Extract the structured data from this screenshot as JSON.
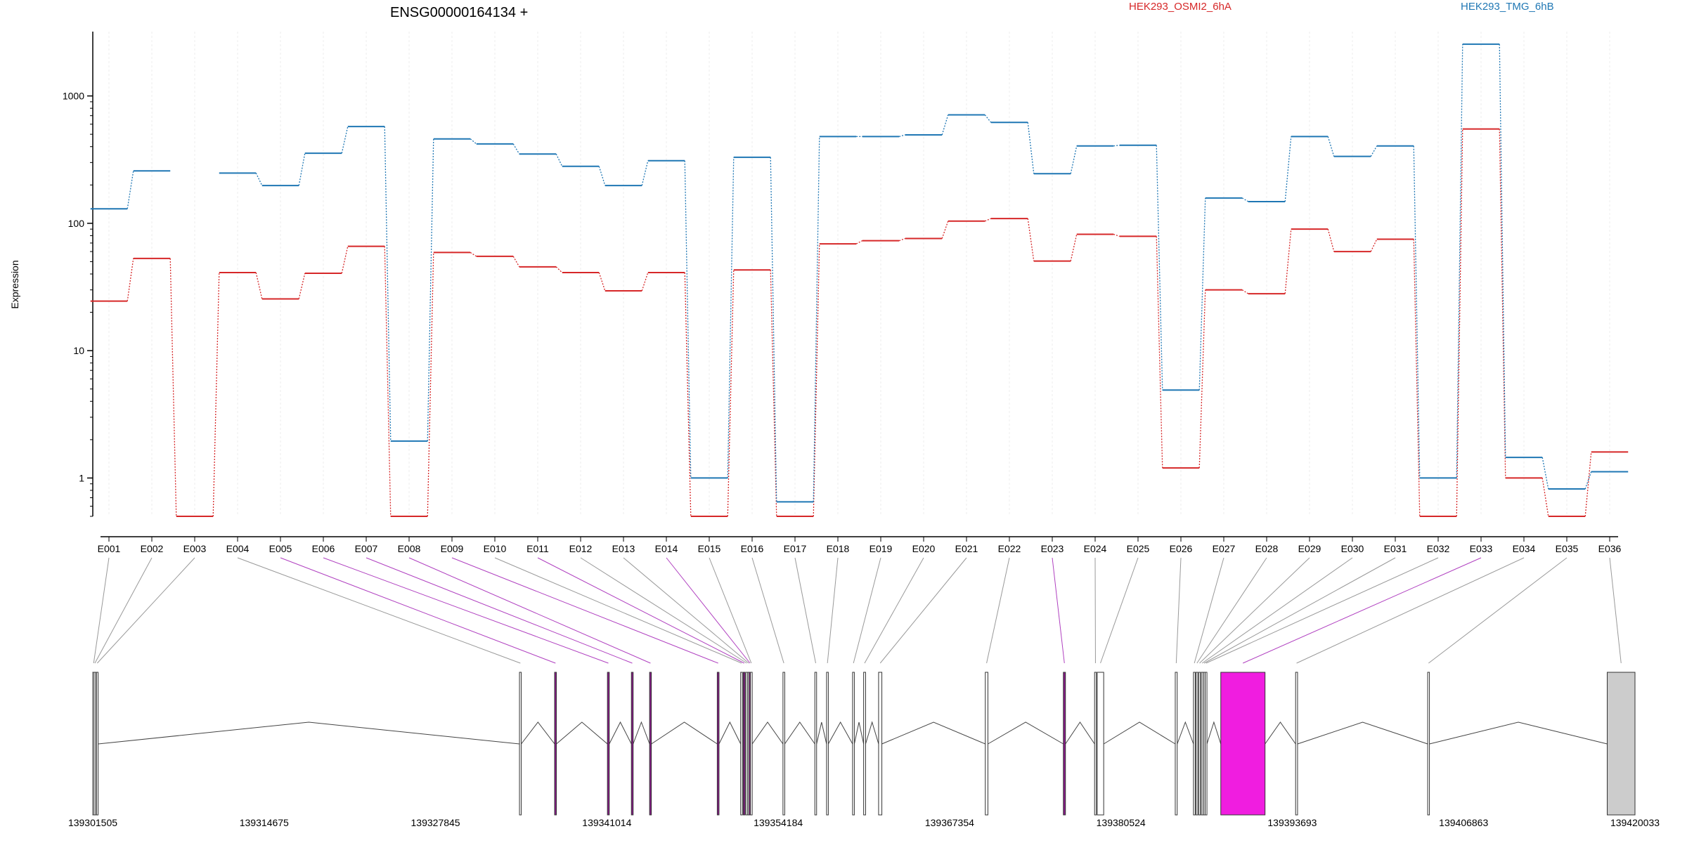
{
  "chart_data": {
    "type": "line",
    "title": "ENSG00000164134 +",
    "ylabel": "Expression",
    "yscale": "log",
    "ylim": [
      0.5,
      3200
    ],
    "yticks": [
      {
        "value": 1,
        "label": "1"
      },
      {
        "value": 10,
        "label": "10"
      },
      {
        "value": 100,
        "label": "100"
      },
      {
        "value": 1000,
        "label": "1000"
      }
    ],
    "categories": [
      "E001",
      "E002",
      "E003",
      "E004",
      "E005",
      "E006",
      "E007",
      "E008",
      "E009",
      "E010",
      "E011",
      "E012",
      "E013",
      "E014",
      "E015",
      "E016",
      "E017",
      "E018",
      "E019",
      "E020",
      "E021",
      "E022",
      "E023",
      "E024",
      "E025",
      "E026",
      "E027",
      "E028",
      "E029",
      "E030",
      "E031",
      "E032",
      "E033",
      "E034",
      "E035",
      "E036"
    ],
    "series": [
      {
        "name": "HEK293_OSMI2_6hA",
        "color": "#d62728",
        "values": [
          24.5,
          53,
          0.5,
          41,
          25.5,
          40.5,
          66,
          0.5,
          59,
          55,
          45.5,
          41,
          29.5,
          41,
          0.5,
          43,
          0.5,
          69,
          73,
          76,
          104,
          109,
          50.5,
          82,
          79,
          1.2,
          30,
          28,
          90,
          60,
          75,
          0.5,
          550,
          1.0,
          0.5,
          1.6
        ]
      },
      {
        "name": "HEK293_TMG_6hB",
        "color": "#1f77b4",
        "values": [
          130,
          258,
          null,
          248,
          198,
          355,
          575,
          1.95,
          460,
          420,
          350,
          280,
          198,
          310,
          1.0,
          330,
          0.65,
          480,
          480,
          495,
          710,
          620,
          245,
          405,
          410,
          4.9,
          158,
          148,
          480,
          335,
          405,
          1.0,
          2550,
          1.45,
          0.82,
          1.12
        ]
      }
    ],
    "gene_model": {
      "coord_ticks": [
        "139301505",
        "139314675",
        "139327845",
        "139341014",
        "139354184",
        "139367354",
        "139380524",
        "139393693",
        "139406863",
        "139420033"
      ],
      "coord_range": [
        139301505,
        139420033
      ],
      "exons": [
        {
          "id": "E001",
          "start": 139301505,
          "end": 139301560,
          "highlight": false
        },
        {
          "id": "E002",
          "start": 139301600,
          "end": 139301700,
          "highlight": false
        },
        {
          "id": "E003",
          "start": 139301780,
          "end": 139301900,
          "highlight": false
        },
        {
          "id": "E004",
          "start": 139334300,
          "end": 139334420,
          "highlight": false
        },
        {
          "id": "E005",
          "start": 139337000,
          "end": 139337120,
          "highlight": true
        },
        {
          "id": "E006",
          "start": 139341060,
          "end": 139341200,
          "highlight": true
        },
        {
          "id": "E007",
          "start": 139342900,
          "end": 139343020,
          "highlight": true
        },
        {
          "id": "E008",
          "start": 139344300,
          "end": 139344420,
          "highlight": true
        },
        {
          "id": "E009",
          "start": 139349500,
          "end": 139349620,
          "highlight": true
        },
        {
          "id": "E010",
          "start": 139351300,
          "end": 139351360,
          "highlight": false
        },
        {
          "id": "E011",
          "start": 139351500,
          "end": 139351580,
          "highlight": true
        },
        {
          "id": "E012",
          "start": 139351700,
          "end": 139351760,
          "highlight": false
        },
        {
          "id": "E013",
          "start": 139351850,
          "end": 139351900,
          "highlight": false
        },
        {
          "id": "E014",
          "start": 139351950,
          "end": 139352000,
          "highlight": true
        },
        {
          "id": "E015",
          "start": 139352050,
          "end": 139352100,
          "highlight": false
        },
        {
          "id": "E016",
          "start": 139354550,
          "end": 139354650,
          "highlight": false
        },
        {
          "id": "E017",
          "start": 139357000,
          "end": 139357120,
          "highlight": false
        },
        {
          "id": "E018",
          "start": 139357900,
          "end": 139358000,
          "highlight": false
        },
        {
          "id": "E019",
          "start": 139359900,
          "end": 139360000,
          "highlight": false
        },
        {
          "id": "E020",
          "start": 139360750,
          "end": 139360900,
          "highlight": false
        },
        {
          "id": "E021",
          "start": 139361900,
          "end": 139362150,
          "highlight": false
        },
        {
          "id": "E022",
          "start": 139370100,
          "end": 139370300,
          "highlight": false
        },
        {
          "id": "E023",
          "start": 139376100,
          "end": 139376260,
          "highlight": true
        },
        {
          "id": "E024",
          "start": 139378500,
          "end": 139378620,
          "highlight": false
        },
        {
          "id": "E025",
          "start": 139378700,
          "end": 139379200,
          "highlight": false
        },
        {
          "id": "E026",
          "start": 139384700,
          "end": 139384850,
          "highlight": false
        },
        {
          "id": "E027",
          "start": 139386100,
          "end": 139386200,
          "highlight": false
        },
        {
          "id": "E028",
          "start": 139386300,
          "end": 139386400,
          "highlight": false
        },
        {
          "id": "E029",
          "start": 139386500,
          "end": 139386600,
          "highlight": false
        },
        {
          "id": "E030",
          "start": 139386700,
          "end": 139386780,
          "highlight": false
        },
        {
          "id": "E031",
          "start": 139386850,
          "end": 139386950,
          "highlight": false
        },
        {
          "id": "E032",
          "start": 139387000,
          "end": 139387100,
          "highlight": false
        },
        {
          "id": "E033",
          "start": 139388200,
          "end": 139391600,
          "highlight": true
        },
        {
          "id": "E034",
          "start": 139393950,
          "end": 139394100,
          "highlight": false
        },
        {
          "id": "E035",
          "start": 139404100,
          "end": 139404220,
          "highlight": false
        },
        {
          "id": "E036",
          "start": 139417900,
          "end": 139420033,
          "highlight": false
        }
      ]
    }
  }
}
